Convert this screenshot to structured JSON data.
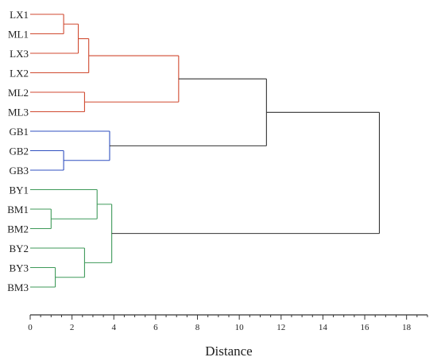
{
  "chart_data": {
    "type": "dendrogram",
    "xlabel": "Distance",
    "xlim": [
      0,
      19
    ],
    "x_ticks": [
      0,
      2,
      4,
      6,
      8,
      10,
      12,
      14,
      16,
      18
    ],
    "leaves": [
      "LX1",
      "ML1",
      "LX3",
      "LX2",
      "ML2",
      "ML3",
      "GB1",
      "GB2",
      "GB3",
      "BY1",
      "BM1",
      "BM2",
      "BY2",
      "BY3",
      "BM3"
    ],
    "clusters": [
      {
        "color": "#d04a30"
      },
      {
        "color": "#3050c0"
      },
      {
        "color": "#3f9a5a"
      }
    ],
    "root_color": "#333333",
    "merges": [
      {
        "id": "a",
        "children": [
          "LX1",
          "ML1"
        ],
        "distance": 1.6,
        "cluster": 0
      },
      {
        "id": "b",
        "children": [
          "a",
          "LX3"
        ],
        "distance": 2.3,
        "cluster": 0
      },
      {
        "id": "c",
        "children": [
          "b",
          "LX2"
        ],
        "distance": 2.8,
        "cluster": 0
      },
      {
        "id": "d",
        "children": [
          "ML2",
          "ML3"
        ],
        "distance": 2.6,
        "cluster": 0
      },
      {
        "id": "e",
        "children": [
          "c",
          "d"
        ],
        "distance": 7.1,
        "cluster": 0
      },
      {
        "id": "f",
        "children": [
          "GB2",
          "GB3"
        ],
        "distance": 1.6,
        "cluster": 1
      },
      {
        "id": "g",
        "children": [
          "GB1",
          "f"
        ],
        "distance": 3.8,
        "cluster": 1
      },
      {
        "id": "h",
        "children": [
          "e",
          "g"
        ],
        "distance": 11.3,
        "cluster": -1
      },
      {
        "id": "i",
        "children": [
          "BM1",
          "BM2"
        ],
        "distance": 1.0,
        "cluster": 2
      },
      {
        "id": "j",
        "children": [
          "BY1",
          "i"
        ],
        "distance": 3.2,
        "cluster": 2
      },
      {
        "id": "k",
        "children": [
          "BY3",
          "BM3"
        ],
        "distance": 1.2,
        "cluster": 2
      },
      {
        "id": "l",
        "children": [
          "BY2",
          "k"
        ],
        "distance": 2.6,
        "cluster": 2
      },
      {
        "id": "m",
        "children": [
          "j",
          "l"
        ],
        "distance": 3.9,
        "cluster": 2
      },
      {
        "id": "n",
        "children": [
          "h",
          "m"
        ],
        "distance": 16.7,
        "cluster": -1
      }
    ]
  }
}
